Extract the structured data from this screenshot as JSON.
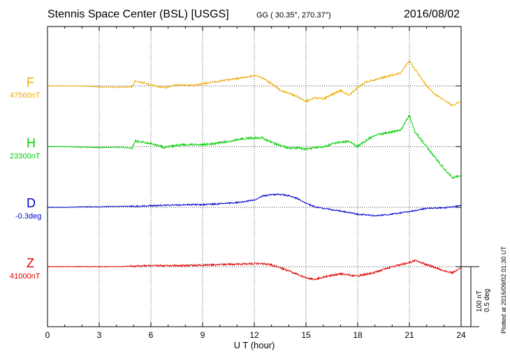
{
  "header": {
    "title": "Stennis Space Center (BSL)  [USGS]",
    "coords": "GG ( 30.35°, 270.37°)",
    "date": "2016/08/02"
  },
  "scale_bar": {
    "line1": "100 nT",
    "line2": "0.5 deg"
  },
  "plotted_note": "Plotted at 2016/09/02 01:30 UT",
  "chart_data": {
    "type": "line",
    "xlabel": "U T (hour)",
    "xlim": [
      0,
      24
    ],
    "xticks": [
      0,
      3,
      6,
      9,
      12,
      15,
      18,
      21,
      24
    ],
    "grid": true,
    "series": [
      {
        "name": "F",
        "baseline_label": "47560nT",
        "color": "#f0a800",
        "unit": "nT",
        "x": [
          0,
          1,
          2,
          3,
          4,
          4.9,
          5.1,
          6,
          6.8,
          7.5,
          8.5,
          9.5,
          10.5,
          11.5,
          12,
          12.5,
          13,
          13.5,
          14,
          14.5,
          15,
          15.5,
          16,
          17,
          17.5,
          18,
          18.5,
          19,
          20,
          20.5,
          21,
          21.3,
          22,
          22.5,
          23,
          23.5,
          24
        ],
        "y": [
          0,
          0,
          0,
          -2,
          -3,
          -2,
          10,
          2,
          -4,
          2,
          1,
          7,
          12,
          17,
          20,
          15,
          4,
          -8,
          -14,
          -21,
          -30,
          -23,
          -25,
          -9,
          -18,
          -3,
          8,
          12,
          21,
          25,
          48,
          33,
          0,
          -17,
          -27,
          -38,
          -30
        ]
      },
      {
        "name": "H",
        "baseline_label": "23300nT",
        "color": "#00d000",
        "unit": "nT",
        "x": [
          0,
          1,
          2,
          3,
          4,
          4.9,
          5.1,
          6,
          6.8,
          7.5,
          8.5,
          9.5,
          10.5,
          11.5,
          12,
          12.5,
          13,
          13.5,
          14,
          14.5,
          15,
          15.5,
          16,
          17,
          17.5,
          18,
          18.5,
          19,
          20,
          20.5,
          21,
          21.3,
          22,
          22.5,
          23,
          23.5,
          24
        ],
        "y": [
          0,
          0,
          -1,
          -2,
          -1,
          -3,
          11,
          6,
          -2,
          3,
          4,
          5,
          10,
          16,
          17,
          17,
          8,
          3,
          -3,
          -2,
          -5,
          -2,
          0,
          9,
          10,
          0,
          12,
          22,
          28,
          32,
          61,
          30,
          0,
          -22,
          -42,
          -61,
          -56
        ]
      },
      {
        "name": "D",
        "baseline_label": "-0.3deg",
        "color": "#0000d0",
        "unit": "deg",
        "x": [
          0,
          1,
          2,
          3,
          4,
          5,
          6,
          7,
          8,
          9,
          10,
          11,
          12,
          12.5,
          13,
          13.5,
          14,
          14.5,
          15,
          15.5,
          16,
          17,
          18,
          19,
          20,
          21,
          22,
          22.5,
          23,
          23.5,
          24
        ],
        "y": [
          0,
          0,
          0.005,
          0.005,
          0.01,
          0.01,
          0.015,
          0.02,
          0.025,
          0.025,
          0.035,
          0.045,
          0.07,
          0.11,
          0.12,
          0.125,
          0.11,
          0.085,
          0.04,
          0.005,
          -0.01,
          -0.035,
          -0.065,
          -0.08,
          -0.065,
          -0.04,
          -0.01,
          -0.005,
          -0.005,
          0.005,
          0.02
        ]
      },
      {
        "name": "Z",
        "baseline_label": "41000nT",
        "color": "#e00000",
        "unit": "nT",
        "x": [
          0,
          1,
          2,
          3,
          4,
          5,
          6,
          7,
          8,
          9,
          10,
          11,
          12,
          12.5,
          13,
          13.5,
          14,
          14.5,
          15,
          15.5,
          16,
          17,
          18,
          19,
          20,
          21,
          21.3,
          22,
          22.5,
          23,
          23.5,
          24
        ],
        "y": [
          0,
          0,
          0,
          0,
          0,
          1,
          2,
          2,
          2,
          3,
          4,
          5,
          6,
          6,
          3,
          -2,
          -8,
          -15,
          -22,
          -24,
          -20,
          -14,
          -18,
          -11,
          0,
          8,
          12,
          4,
          -2,
          -8,
          -12,
          -2
        ]
      }
    ]
  }
}
